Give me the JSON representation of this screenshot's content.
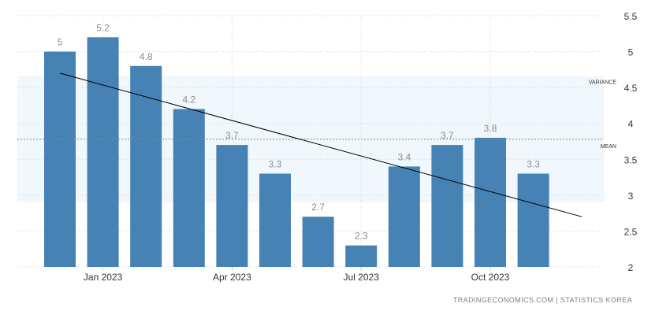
{
  "attribution": "TRADINGECONOMICS.COM  |  STATISTICS KOREA",
  "chart_data": {
    "type": "bar",
    "categories": [
      "2022-12",
      "2023-01",
      "2023-02",
      "2023-03",
      "2023-04",
      "2023-05",
      "2023-06",
      "2023-07",
      "2023-08",
      "2023-09",
      "2023-10",
      "2023-11"
    ],
    "values": [
      5.0,
      5.2,
      4.8,
      4.2,
      3.7,
      3.3,
      2.7,
      2.3,
      3.4,
      3.7,
      3.8,
      3.3
    ],
    "value_labels": [
      "5",
      "5.2",
      "4.8",
      "4.2",
      "3.7",
      "3.3",
      "2.7",
      "2.3",
      "3.4",
      "3.7",
      "3.8",
      "3.3"
    ],
    "x_ticks": [
      {
        "category": "2023-01",
        "label": "Jan 2023"
      },
      {
        "category": "2023-04",
        "label": "Apr 2023"
      },
      {
        "category": "2023-07",
        "label": "Jul 2023"
      },
      {
        "category": "2023-10",
        "label": "Oct 2023"
      }
    ],
    "y_ticks": [
      2,
      2.5,
      3,
      3.5,
      4,
      4.5,
      5,
      5.5
    ],
    "ylim": [
      2,
      5.5
    ],
    "y_axis_side": "right",
    "grid": true,
    "mean": {
      "label": "MEAN",
      "value": 3.78
    },
    "variance_band": {
      "label": "VARIANCE",
      "lower": 2.9,
      "upper": 4.66
    },
    "trend_line": {
      "start": 4.7,
      "end": 2.7
    },
    "colors": {
      "bar": "#4682b4",
      "band": "#f0f7fd",
      "trend": "#000000",
      "grid": "#d9d9d9",
      "value_label": "#8c8c8c",
      "axis_text": "#333333"
    }
  }
}
